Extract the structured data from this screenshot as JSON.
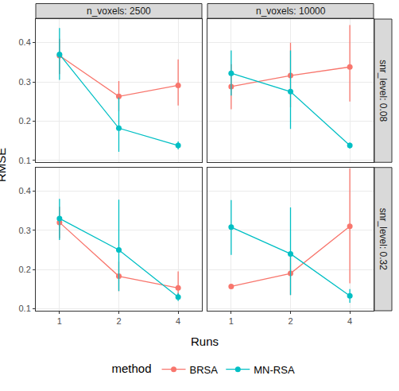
{
  "chart_data": {
    "type": "line",
    "x_label": "Runs",
    "y_label": "RMSE",
    "legend_title": "method",
    "legend": "bottom",
    "grid": true,
    "categories": [
      "1",
      "2",
      "4"
    ],
    "ylim": [
      0.095,
      0.46
    ],
    "yticks": [
      0.1,
      0.2,
      0.3,
      0.4
    ],
    "columns": [
      "n_voxels: 2500",
      "n_voxels: 10000"
    ],
    "rows": [
      "snr_level: 0.08",
      "snr_level: 0.32"
    ],
    "series": [
      {
        "name": "BRSA",
        "color": "#F8766D",
        "marker": "circle"
      },
      {
        "name": "MN-RSA",
        "color": "#00BFC4",
        "marker": "circle"
      }
    ],
    "panels": [
      [
        [
          {
            "values": [
              0.367,
              0.263,
              0.291
            ],
            "error_low": [
              0.32,
              0.225,
              0.24
            ],
            "error_high": [
              0.41,
              0.302,
              0.357
            ]
          },
          {
            "values": [
              0.37,
              0.182,
              0.138
            ],
            "error_low": [
              0.305,
              0.122,
              0.128
            ],
            "error_high": [
              0.437,
              0.26,
              0.148
            ]
          }
        ],
        [
          {
            "values": [
              0.288,
              0.316,
              0.338
            ],
            "error_low": [
              0.23,
              0.235,
              0.25
            ],
            "error_high": [
              0.345,
              0.4,
              0.445
            ]
          },
          {
            "values": [
              0.322,
              0.275,
              0.138
            ],
            "error_low": [
              0.265,
              0.18,
              0.13
            ],
            "error_high": [
              0.38,
              0.38,
              0.145
            ]
          }
        ]
      ],
      [
        [
          {
            "values": [
              0.32,
              0.183,
              0.153
            ],
            "error_low": [
              0.28,
              0.145,
              0.13
            ],
            "error_high": [
              0.36,
              0.22,
              0.195
            ]
          },
          {
            "values": [
              0.33,
              0.25,
              0.13
            ],
            "error_low": [
              0.275,
              0.145,
              0.12
            ],
            "error_high": [
              0.38,
              0.378,
              0.14
            ]
          }
        ],
        [
          {
            "values": [
              0.157,
              0.19,
              0.31
            ],
            "error_low": [
              0.155,
              0.135,
              0.165
            ],
            "error_high": [
              0.16,
              0.24,
              0.458
            ]
          },
          {
            "values": [
              0.308,
              0.24,
              0.133
            ],
            "error_low": [
              0.237,
              0.135,
              0.115
            ],
            "error_high": [
              0.377,
              0.358,
              0.15
            ]
          }
        ]
      ]
    ]
  }
}
